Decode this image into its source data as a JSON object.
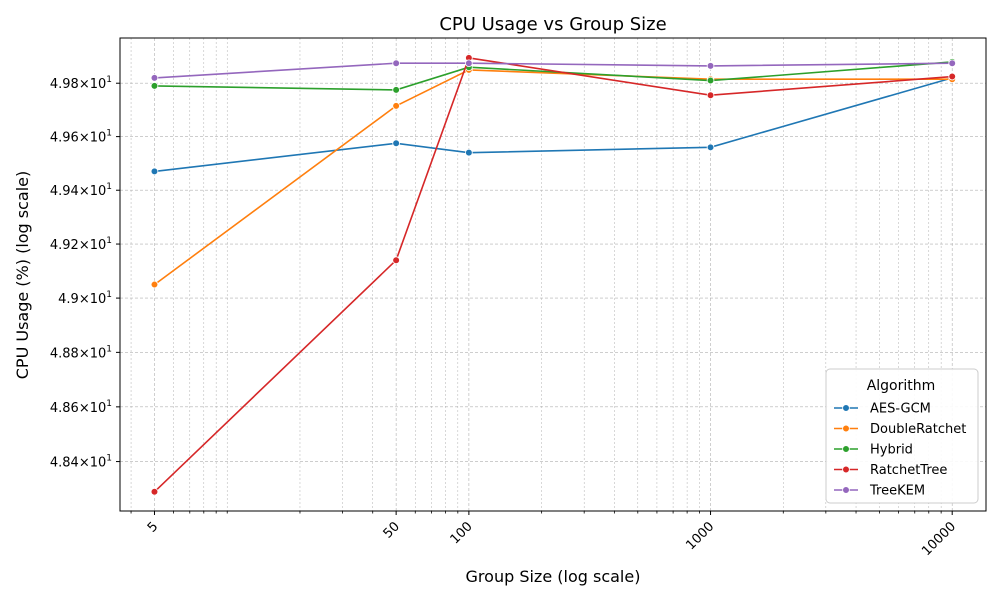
{
  "chart_data": {
    "type": "line",
    "title": "CPU Usage vs Group Size",
    "xlabel": "Group Size (log scale)",
    "ylabel": "CPU Usage (%) (log scale)",
    "x_scale": "log",
    "y_scale": "log",
    "x": [
      5,
      50,
      100,
      1000,
      10000
    ],
    "x_tick_labels": [
      "5",
      "50",
      "100",
      "1000",
      "10000"
    ],
    "ylim": [
      48.22,
      49.97
    ],
    "y_ticks": [
      48.4,
      48.6,
      48.8,
      49.0,
      49.2,
      49.4,
      49.6,
      49.8
    ],
    "y_tick_labels": [
      {
        "base": "4.84",
        "exp": "1"
      },
      {
        "base": "4.86",
        "exp": "1"
      },
      {
        "base": "4.88",
        "exp": "1"
      },
      {
        "base": "4.9",
        "exp": "1"
      },
      {
        "base": "4.92",
        "exp": "1"
      },
      {
        "base": "4.94",
        "exp": "1"
      },
      {
        "base": "4.96",
        "exp": "1"
      },
      {
        "base": "4.98",
        "exp": "1"
      }
    ],
    "grid": true,
    "legend_title": "Algorithm",
    "legend_position": "bottom-right",
    "series": [
      {
        "name": "AES-GCM",
        "color": "#1f77b4",
        "values": [
          49.47,
          49.575,
          49.54,
          49.56,
          49.82
        ]
      },
      {
        "name": "DoubleRatchet",
        "color": "#ff7f0e",
        "values": [
          49.05,
          49.715,
          49.85,
          49.815,
          49.815
        ]
      },
      {
        "name": "Hybrid",
        "color": "#2ca02c",
        "values": [
          49.79,
          49.775,
          49.86,
          49.81,
          49.88
        ]
      },
      {
        "name": "RatchetTree",
        "color": "#d62728",
        "values": [
          48.29,
          49.14,
          49.895,
          49.755,
          49.825
        ]
      },
      {
        "name": "TreeKEM",
        "color": "#9467bd",
        "values": [
          49.82,
          49.875,
          49.875,
          49.865,
          49.875
        ]
      }
    ]
  }
}
